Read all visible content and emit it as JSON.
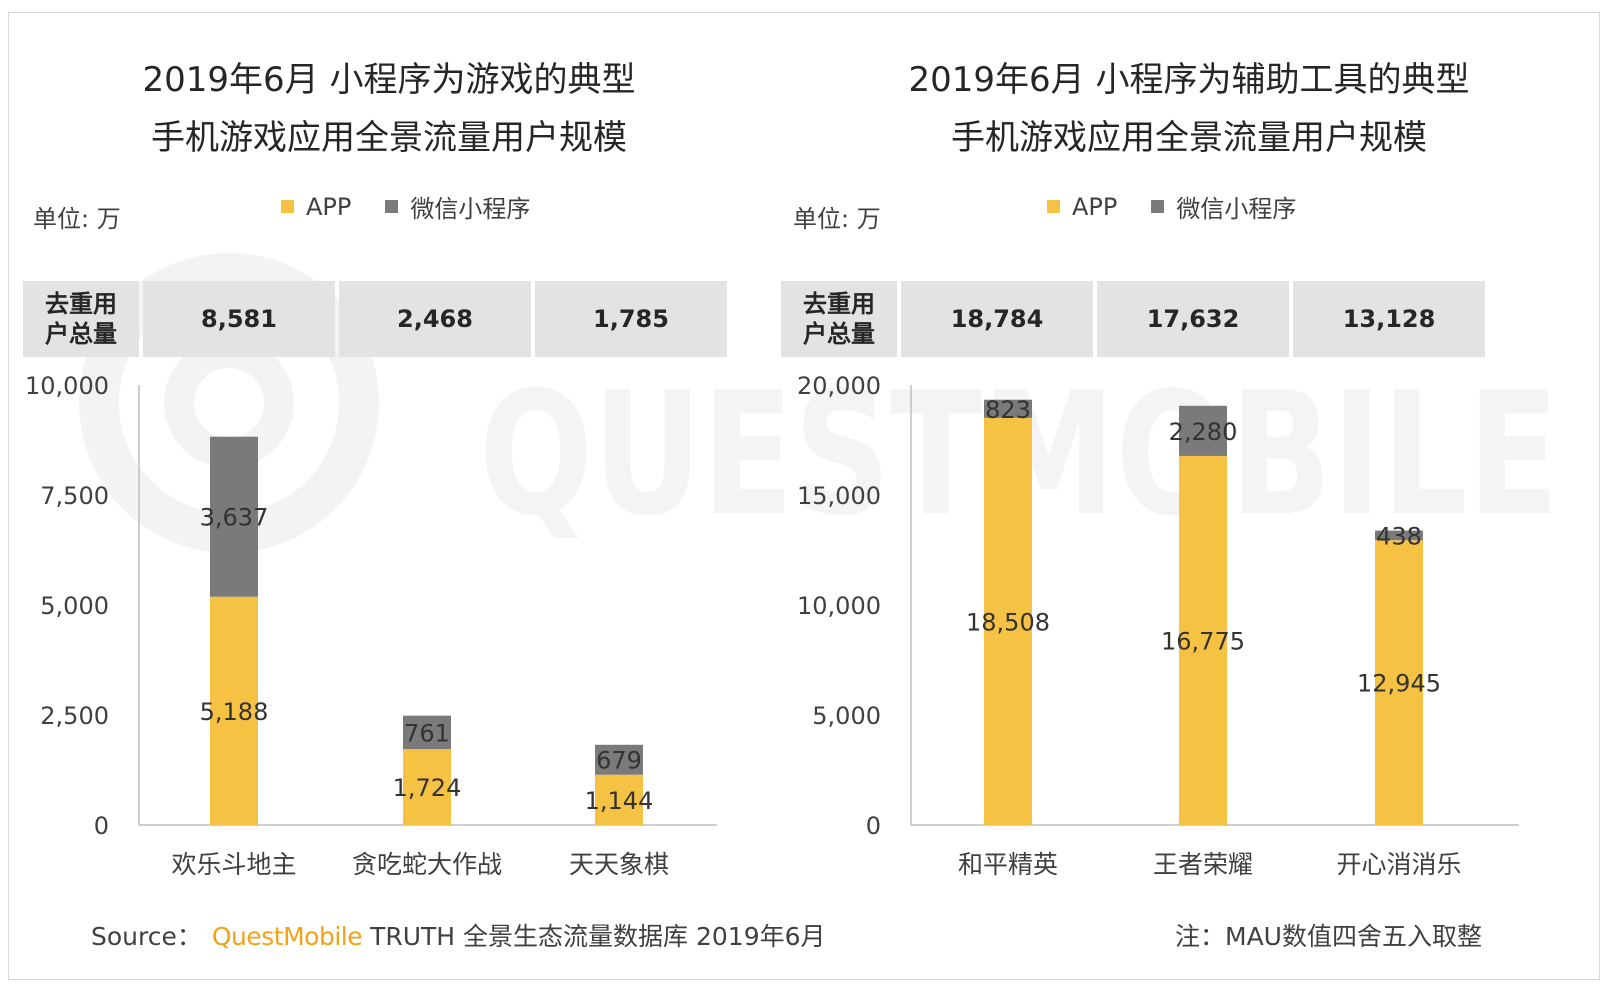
{
  "colors": {
    "app": "#f5c244",
    "mini": "#7a7a7a",
    "axis": "#bfbfbf",
    "totals_bg": "#e3e3e3"
  },
  "watermark_text": "QUESTMOBILE",
  "panels": [
    {
      "title_line1": "2019年6月 小程序为游戏的典型",
      "title_line2": "手机游戏应用全景流量用户规模",
      "unit": "单位: 万",
      "legend": {
        "app": "APP",
        "mini": "微信小程序"
      },
      "totals_header": [
        "去重用",
        "户总量"
      ],
      "totals": [
        "8,581",
        "2,468",
        "1,785"
      ]
    },
    {
      "title_line1": "2019年6月 小程序为辅助工具的典型",
      "title_line2": "手机游戏应用全景流量用户规模",
      "unit": "单位: 万",
      "legend": {
        "app": "APP",
        "mini": "微信小程序"
      },
      "totals_header": [
        "去重用",
        "户总量"
      ],
      "totals": [
        "18,784",
        "17,632",
        "13,128"
      ]
    }
  ],
  "chart_data": [
    {
      "type": "bar",
      "stacked": true,
      "categories": [
        "欢乐斗地主",
        "贪吃蛇大作战",
        "天天象棋"
      ],
      "series": [
        {
          "name": "APP",
          "values": [
            5188,
            1724,
            1144
          ],
          "labels": [
            "5,188",
            "1,724",
            "1,144"
          ]
        },
        {
          "name": "微信小程序",
          "values": [
            3637,
            761,
            679
          ],
          "labels": [
            "3,637",
            "761",
            "679"
          ]
        }
      ],
      "ylim": [
        0,
        10000
      ],
      "yticks": [
        0,
        2500,
        5000,
        7500,
        10000
      ],
      "ytick_labels": [
        "0",
        "2,500",
        "5,000",
        "7,500",
        "10,000"
      ]
    },
    {
      "type": "bar",
      "stacked": true,
      "categories": [
        "和平精英",
        "王者荣耀",
        "开心消消乐"
      ],
      "series": [
        {
          "name": "APP",
          "values": [
            18508,
            16775,
            12945
          ],
          "labels": [
            "18,508",
            "16,775",
            "12,945"
          ]
        },
        {
          "name": "微信小程序",
          "values": [
            823,
            2280,
            438
          ],
          "labels": [
            "823",
            "2,280",
            "438"
          ]
        }
      ],
      "ylim": [
        0,
        20000
      ],
      "yticks": [
        0,
        5000,
        10000,
        15000,
        20000
      ],
      "ytick_labels": [
        "0",
        "5,000",
        "10,000",
        "15,000",
        "20,000"
      ]
    }
  ],
  "footer": {
    "source_label": "Source：",
    "brand": "QuestMobile",
    "source_text": "TRUTH 全景生态流量数据库 2019年6月",
    "note": "注：MAU数值四舍五入取整"
  }
}
